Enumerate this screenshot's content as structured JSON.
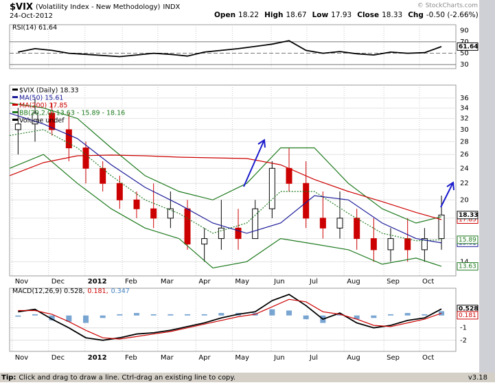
{
  "header": {
    "symbol": "$VIX",
    "name": "(Volatility Index - New Methodology)",
    "exchange": "INDX",
    "date": "24-Oct-2012",
    "credit": "© StockCharts.com",
    "quote": [
      {
        "label": "Open",
        "value": "18.22"
      },
      {
        "label": "High",
        "value": "18.67"
      },
      {
        "label": "Low",
        "value": "17.93"
      },
      {
        "label": "Close",
        "value": "18.33"
      },
      {
        "label": "Chg",
        "value": "-0.50 (-2.66%)"
      }
    ]
  },
  "chart_data": [
    {
      "type": "candlestick",
      "name": "$VIX (Daily) 18.33",
      "volume_label": "Volume undef",
      "log_scale": true,
      "grid": true,
      "up_color": "#000000",
      "down_color": "#cc0000",
      "x": [
        1,
        3,
        5,
        7,
        9,
        11,
        13,
        15,
        17,
        19,
        21,
        23,
        25,
        27,
        29,
        31,
        33,
        35,
        37,
        39,
        41,
        43,
        45,
        47,
        49,
        51
      ],
      "open": [
        30,
        31,
        33,
        30,
        27,
        24,
        22,
        20,
        19,
        18,
        19,
        15.5,
        16,
        17,
        16,
        19,
        24,
        22,
        18,
        17,
        18,
        16,
        15,
        16,
        15,
        16
      ],
      "high": [
        34,
        36,
        35,
        33,
        28,
        25,
        23,
        21,
        22,
        21,
        20,
        17,
        20,
        19,
        20,
        25,
        27,
        25,
        21,
        21,
        19,
        18,
        17,
        18,
        17,
        20.5
      ],
      "low": [
        26,
        28,
        29,
        25,
        22,
        21,
        19,
        18,
        17,
        17,
        15,
        14,
        15,
        15,
        16,
        18,
        21,
        17,
        16,
        16,
        15,
        14,
        14,
        14,
        14,
        15
      ],
      "close": [
        31,
        33,
        30,
        27,
        24,
        22,
        20,
        19,
        18,
        19,
        15.5,
        16,
        17,
        16,
        19,
        24,
        22,
        18,
        17,
        18,
        16,
        15,
        16,
        15,
        16,
        18.33
      ],
      "line_x": [
        0,
        4,
        8,
        12,
        16,
        20,
        24,
        28,
        32,
        36,
        40,
        44,
        48,
        51
      ],
      "lines": [
        {
          "name": "MA(50) 15.61",
          "color": "#1a1a99",
          "values": [
            33,
            31,
            28.5,
            24.5,
            21.5,
            19.5,
            17.5,
            16.5,
            17.5,
            20.5,
            20,
            17.5,
            16,
            15.61
          ]
        },
        {
          "name": "MA(200) 17.85",
          "color": "#cc0000",
          "values": [
            23,
            24.8,
            25.8,
            25.9,
            25.8,
            25.6,
            25.5,
            25.4,
            24.5,
            22.5,
            21,
            19.8,
            18.6,
            17.85
          ]
        }
      ],
      "bb": {
        "name": "BB(20,2.0) 13.63 - 15.89 - 18.16",
        "color": "#1e7a1e",
        "upper": [
          35,
          34,
          32,
          27,
          23,
          21,
          20,
          22,
          27,
          27,
          22,
          19,
          17.5,
          18.16
        ],
        "middle": [
          29,
          30,
          27,
          23,
          20,
          18.5,
          16.5,
          17.5,
          21,
          21,
          18.5,
          16.5,
          15.8,
          15.89
        ],
        "lower": [
          24,
          26,
          22,
          19,
          17,
          16,
          13.5,
          14,
          16,
          15.5,
          15,
          13.8,
          14.3,
          13.63
        ]
      },
      "xlim": [
        0,
        52.7
      ],
      "xticks": [
        {
          "value": 0.3,
          "label": "Nov"
        },
        {
          "value": 4.6,
          "label": "Dec"
        },
        {
          "value": 8.9,
          "label": "2012",
          "bold": true
        },
        {
          "value": 13.3,
          "label": "Feb"
        },
        {
          "value": 17.5,
          "label": "Mar"
        },
        {
          "value": 22,
          "label": "Apr"
        },
        {
          "value": 26.3,
          "label": "May"
        },
        {
          "value": 30.9,
          "label": "Jun"
        },
        {
          "value": 35.1,
          "label": "Jul"
        },
        {
          "value": 39.5,
          "label": "Aug"
        },
        {
          "value": 44.2,
          "label": "Sep"
        },
        {
          "value": 48.4,
          "label": "Oct"
        }
      ],
      "ylim": [
        12.9,
        38.8
      ],
      "yticks": [
        14,
        16,
        18,
        20,
        22,
        24,
        26,
        28,
        30,
        32,
        34,
        36
      ]
    },
    {
      "type": "line",
      "x": [
        1,
        3,
        5,
        7,
        9,
        11,
        13,
        15,
        17,
        19,
        21,
        23,
        25,
        27,
        29,
        31,
        33,
        35,
        37,
        39,
        41,
        43,
        45,
        47,
        49,
        51
      ],
      "series": [
        {
          "name": "RSI(14) 61.64",
          "color": "#000000",
          "values": [
            52,
            58,
            55,
            50,
            48,
            46,
            44,
            47,
            50,
            48,
            45,
            52,
            55,
            58,
            62,
            66,
            72,
            55,
            50,
            53,
            49,
            47,
            52,
            50,
            51,
            61.64
          ]
        }
      ],
      "ylim": [
        23,
        100
      ],
      "yticks": [
        30,
        50,
        70,
        90
      ]
    },
    {
      "type": "line",
      "x": [
        1,
        3,
        5,
        7,
        9,
        11,
        13,
        15,
        17,
        19,
        21,
        23,
        25,
        27,
        29,
        31,
        33,
        35,
        37,
        39,
        41,
        43,
        45,
        47,
        49,
        51
      ],
      "series": [
        {
          "name": "MACD(12,26,9) 0.528,",
          "color": "#000000",
          "values": [
            0.3,
            0.5,
            -0.3,
            -1.0,
            -1.8,
            -2.0,
            -1.8,
            -1.5,
            -1.4,
            -1.2,
            -0.9,
            -0.6,
            -0.2,
            0.1,
            0.3,
            1.2,
            1.7,
            0.8,
            -0.3,
            0.2,
            -0.6,
            -1.0,
            -0.8,
            -0.4,
            -0.2,
            0.528
          ]
        },
        {
          "name": "0.181,",
          "color": "#cc0000",
          "values": [
            0.4,
            0.4,
            0.1,
            -0.5,
            -1.2,
            -1.8,
            -1.9,
            -1.7,
            -1.5,
            -1.3,
            -1.0,
            -0.7,
            -0.4,
            -0.1,
            0.1,
            0.7,
            1.3,
            1.1,
            0.3,
            0.1,
            -0.3,
            -0.8,
            -0.9,
            -0.6,
            -0.3,
            0.181
          ]
        }
      ],
      "histogram": {
        "name": "0.347",
        "color": "#3f7fbf",
        "values": [
          -0.1,
          0.1,
          -0.4,
          -0.5,
          -0.6,
          -0.2,
          0.1,
          0.2,
          0.1,
          0.1,
          0.1,
          0.1,
          0.2,
          0.2,
          0.2,
          0.5,
          0.4,
          -0.3,
          -0.6,
          0.1,
          -0.3,
          -0.2,
          0.1,
          0.2,
          0.1,
          0.347
        ]
      },
      "ylim": [
        -2.9,
        2.2
      ],
      "yticks": [
        -2,
        -1
      ]
    }
  ],
  "footer": {
    "tip_label": "Tip:",
    "tip": "Click and drag to draw a line. Ctrl-drag an existing line to copy.",
    "version": "v3.18"
  }
}
